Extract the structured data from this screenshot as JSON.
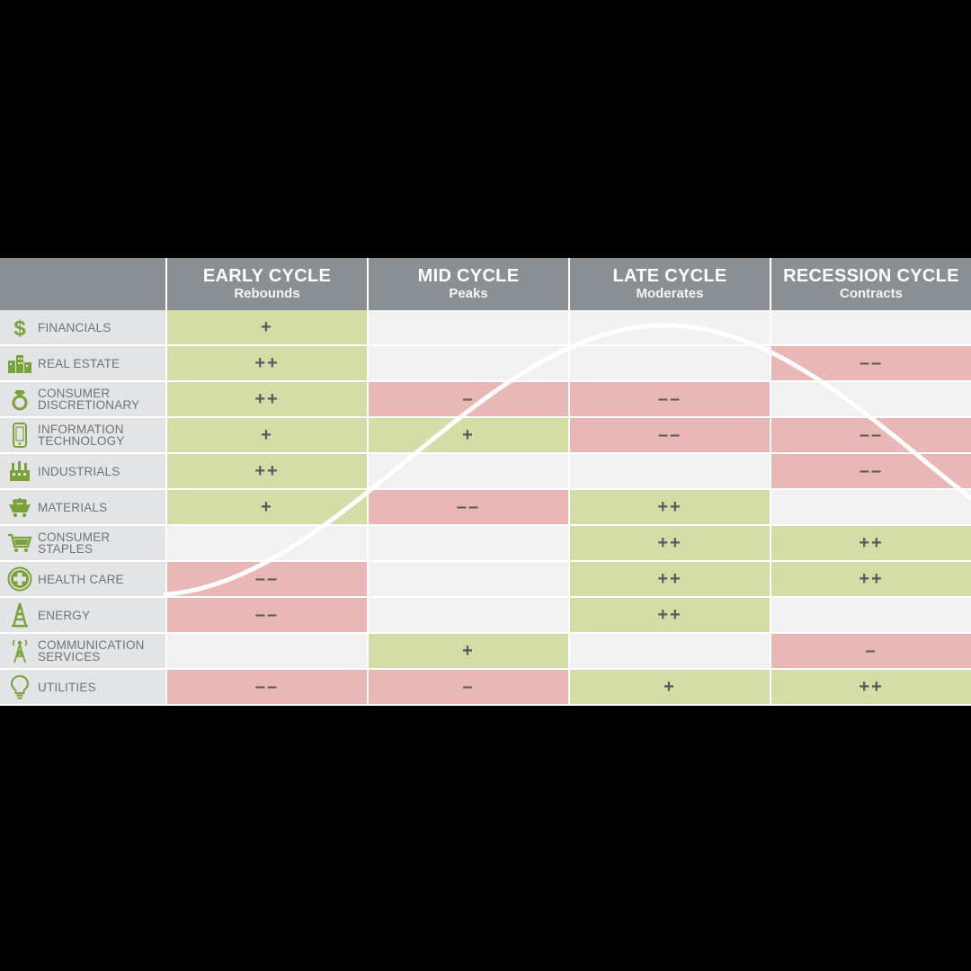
{
  "chart_data": {
    "type": "table",
    "columns": [
      {
        "title": "EARLY CYCLE",
        "subtitle": "Rebounds"
      },
      {
        "title": "MID CYCLE",
        "subtitle": "Peaks"
      },
      {
        "title": "LATE CYCLE",
        "subtitle": "Moderates"
      },
      {
        "title": "RECESSION CYCLE",
        "subtitle": "Contracts"
      }
    ],
    "rows": [
      {
        "sector": "FINANCIALS",
        "icon": "dollar-icon",
        "values": [
          "+",
          "",
          "",
          ""
        ]
      },
      {
        "sector": "REAL ESTATE",
        "icon": "buildings-icon",
        "values": [
          "++",
          "",
          "",
          "––"
        ]
      },
      {
        "sector": "CONSUMER\nDISCRETIONARY",
        "icon": "ring-icon",
        "values": [
          "++",
          "–",
          "––",
          ""
        ]
      },
      {
        "sector": "INFORMATION\nTECHNOLOGY",
        "icon": "smartphone-icon",
        "values": [
          "+",
          "+",
          "––",
          "––"
        ]
      },
      {
        "sector": "INDUSTRIALS",
        "icon": "factory-icon",
        "values": [
          "++",
          "",
          "",
          "––"
        ]
      },
      {
        "sector": "MATERIALS",
        "icon": "mining-cart-icon",
        "values": [
          "+",
          "––",
          "++",
          ""
        ]
      },
      {
        "sector": "CONSUMER\nSTAPLES",
        "icon": "shopping-cart-icon",
        "values": [
          "",
          "",
          "++",
          "++"
        ]
      },
      {
        "sector": "HEALTH CARE",
        "icon": "medical-cross-icon",
        "values": [
          "––",
          "",
          "++",
          "++"
        ]
      },
      {
        "sector": "ENERGY",
        "icon": "oil-derrick-icon",
        "values": [
          "––",
          "",
          "++",
          ""
        ]
      },
      {
        "sector": "COMMUNICATION\nSERVICES",
        "icon": "radio-tower-icon",
        "values": [
          "",
          "+",
          "",
          "–"
        ]
      },
      {
        "sector": "UTILITIES",
        "icon": "light-bulb-icon",
        "values": [
          "––",
          "–",
          "+",
          "++"
        ]
      }
    ],
    "legend": {
      "positive": "+",
      "strong_positive": "++",
      "negative": "–",
      "strong_negative": "––"
    },
    "curve": {
      "description_shape": "business-cycle sine wave",
      "color": "#ffffff"
    }
  },
  "colors": {
    "header_bg": "#8a8f93",
    "sector_bg": "#e3e4e5",
    "positive": "#d3dda5",
    "negative": "#e9b8b6",
    "neutral": "#f1f1f1",
    "icon_green": "#7aa23a"
  }
}
